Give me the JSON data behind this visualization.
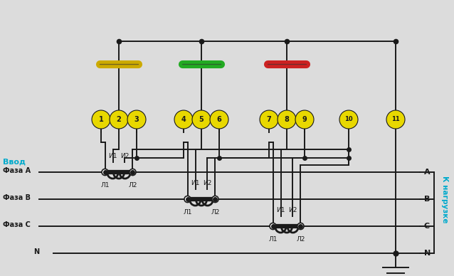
{
  "bg_color": "#dcdcdc",
  "line_color": "#1a1a1a",
  "lw": 1.4,
  "thick_lw": 4.5,
  "fuse_colors": [
    "#ccaa00",
    "#22aa22",
    "#cc2222"
  ],
  "terminal_color": "#e8d800",
  "terminal_edge": "#1a1a1a",
  "cyan_color": "#00aacc",
  "phase_labels": [
    "Фаза A",
    "Фаза B",
    "Фаза C"
  ],
  "vvod_label": "Ввод",
  "nagruzke_label": "К нагрузке",
  "right_labels": [
    "A",
    "B",
    "C",
    "N"
  ]
}
